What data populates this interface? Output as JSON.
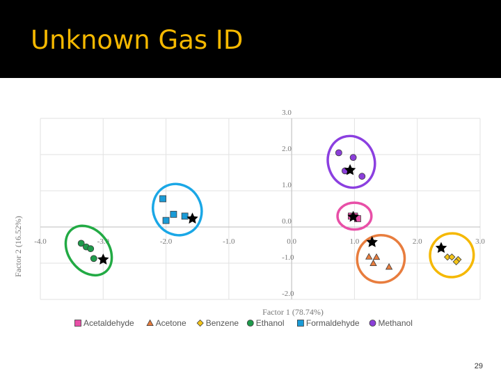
{
  "slide": {
    "title": "Unknown Gas ID",
    "number": "29",
    "colors": {
      "title_bar": "#000000",
      "title_text": "#f5b800"
    }
  },
  "chart_data": {
    "type": "scatter",
    "title": "",
    "xlabel": "Factor 1 (78.74%)",
    "ylabel": "Factor 2 (16.52%)",
    "xlim": [
      -4.0,
      3.0
    ],
    "ylim": [
      -2.0,
      3.0
    ],
    "x_ticks": [
      "-4.0",
      "-3.0",
      "-2.0",
      "-1.0",
      "0.0",
      "1.0",
      "2.0",
      "3.0"
    ],
    "y_ticks": [
      "3.0",
      "2.0",
      "1.0",
      "0.0",
      "-1.0",
      "-2.0"
    ],
    "grid": true,
    "legend_position": "bottom",
    "series": [
      {
        "name": "Acetaldehyde",
        "marker": "square",
        "color": "#e84fa7",
        "points": [
          [
            0.95,
            0.3
          ],
          [
            1.0,
            0.3
          ],
          [
            1.05,
            0.23
          ]
        ]
      },
      {
        "name": "Acetone",
        "marker": "triangle",
        "color": "#e87d3e",
        "points": [
          [
            1.23,
            -0.82
          ],
          [
            1.3,
            -1.0
          ],
          [
            1.35,
            -0.83
          ],
          [
            1.55,
            -1.1
          ]
        ]
      },
      {
        "name": "Benzene",
        "marker": "diamond",
        "color": "#f5c518",
        "points": [
          [
            2.48,
            -0.83
          ],
          [
            2.55,
            -0.83
          ],
          [
            2.65,
            -0.9
          ],
          [
            2.62,
            -0.96
          ]
        ]
      },
      {
        "name": "Ethanol",
        "marker": "circle",
        "color": "#1e9a4b",
        "points": [
          [
            -3.35,
            -0.45
          ],
          [
            -3.27,
            -0.55
          ],
          [
            -3.2,
            -0.6
          ],
          [
            -3.15,
            -0.87
          ]
        ]
      },
      {
        "name": "Formaldehyde",
        "marker": "square",
        "color": "#1a9bd7",
        "points": [
          [
            -2.05,
            0.78
          ],
          [
            -1.88,
            0.35
          ],
          [
            -2.0,
            0.18
          ],
          [
            -1.7,
            0.3
          ]
        ]
      },
      {
        "name": "Methanol",
        "marker": "circle",
        "color": "#8b3fd9",
        "points": [
          [
            0.75,
            2.05
          ],
          [
            0.85,
            1.55
          ],
          [
            0.98,
            1.92
          ],
          [
            1.12,
            1.4
          ]
        ]
      }
    ],
    "unknowns": [
      {
        "x": -1.58,
        "y": 0.23
      },
      {
        "x": -3.0,
        "y": -0.9
      },
      {
        "x": 0.93,
        "y": 1.57
      },
      {
        "x": 0.98,
        "y": 0.28
      },
      {
        "x": 1.28,
        "y": -0.42
      },
      {
        "x": 2.38,
        "y": -0.58
      }
    ],
    "cluster_rings": [
      {
        "color": "#22aa44",
        "cx": -3.23,
        "cy": -0.65,
        "rx": 0.32,
        "ry": 0.75,
        "angle": -38
      },
      {
        "color": "#1aa7e6",
        "cx": -1.82,
        "cy": 0.48,
        "rx": 0.38,
        "ry": 0.72,
        "angle": -28
      },
      {
        "color": "#8b3fe0",
        "cx": 0.95,
        "cy": 1.8,
        "rx": 0.37,
        "ry": 0.72,
        "angle": -18
      },
      {
        "color": "#e84fa7",
        "cx": 1.0,
        "cy": 0.3,
        "rx": 0.27,
        "ry": 0.37,
        "angle": 0
      },
      {
        "color": "#e87d3e",
        "cx": 1.42,
        "cy": -0.88,
        "rx": 0.38,
        "ry": 0.65,
        "angle": -38
      },
      {
        "color": "#f5b800",
        "cx": 2.55,
        "cy": -0.78,
        "rx": 0.35,
        "ry": 0.6,
        "angle": -52
      }
    ]
  }
}
